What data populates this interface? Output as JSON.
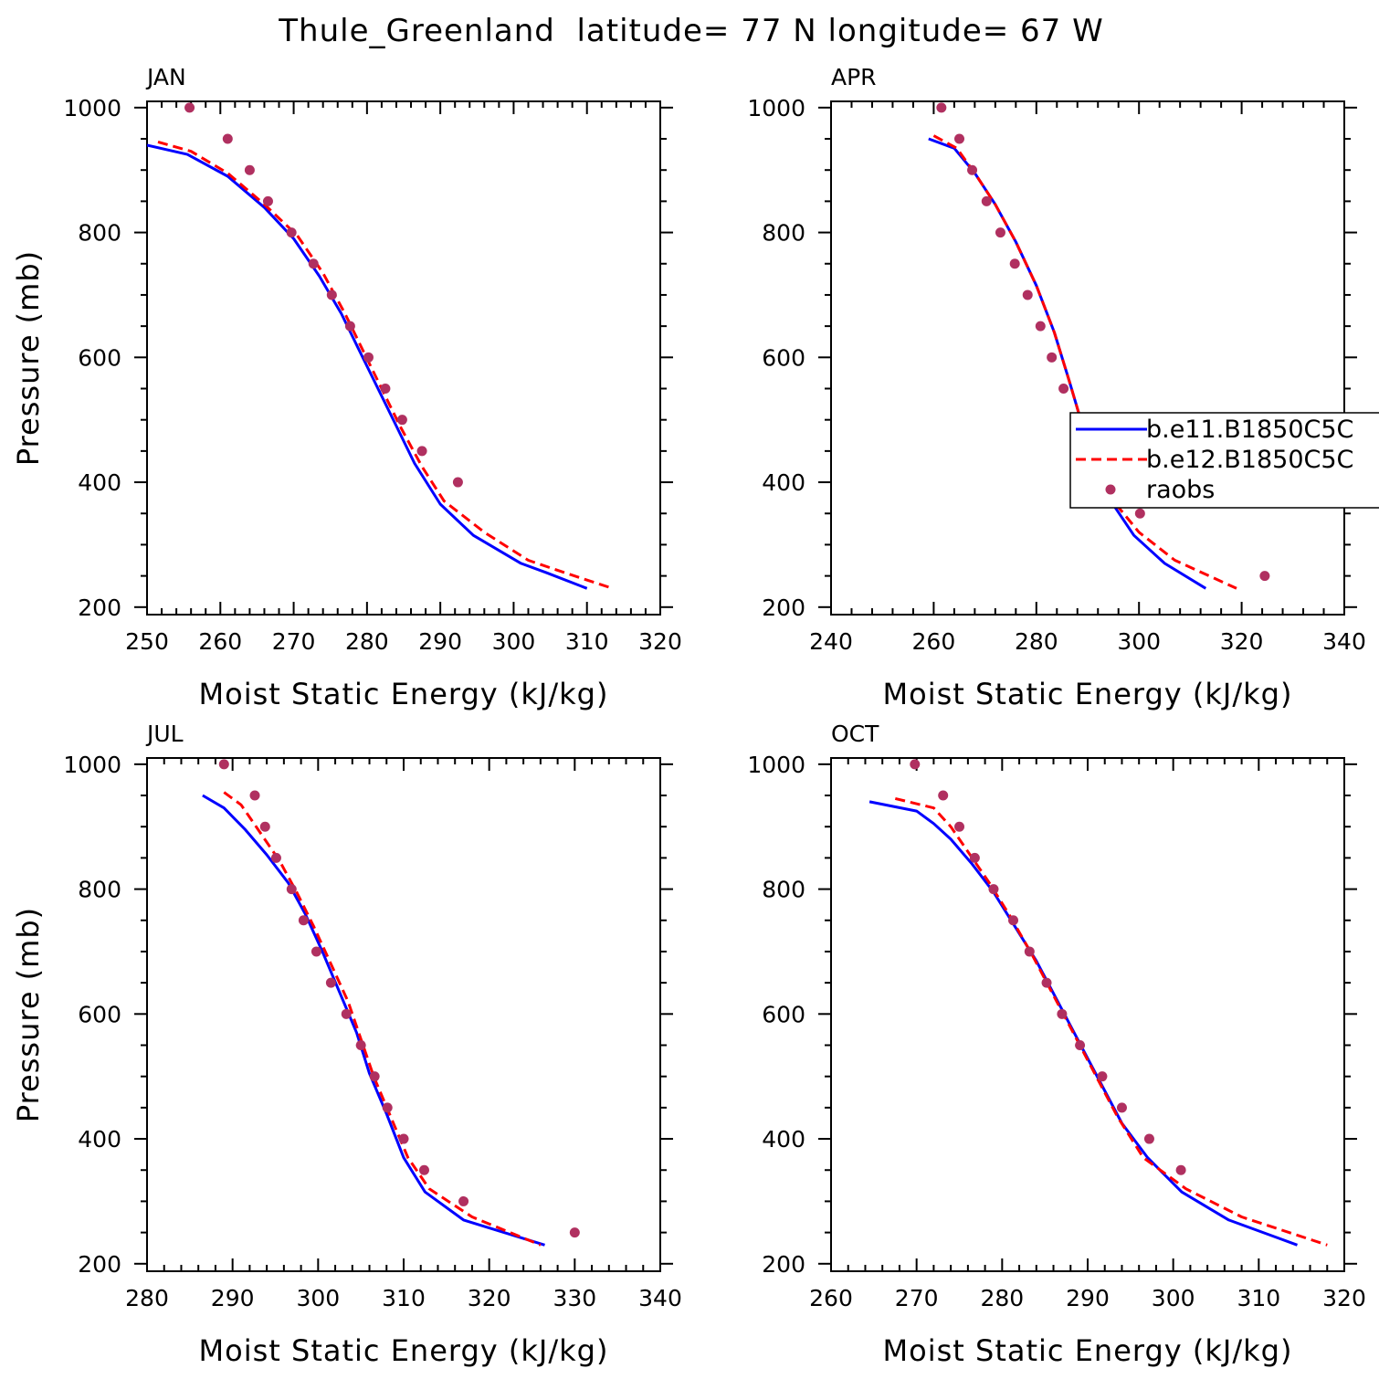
{
  "figure_title": "Thule_Greenland  latitude= 77 N longitude= 67 W",
  "legend": {
    "entries": [
      {
        "label": "b.e11.B1850C5C",
        "color": "#0000ff",
        "style": "solid"
      },
      {
        "label": "b.e12.B1850C5C",
        "color": "#ff0000",
        "style": "dashed"
      },
      {
        "label": "raobs",
        "color": "#b03060",
        "style": "dot"
      }
    ]
  },
  "chart_data": [
    {
      "type": "line",
      "title": "JAN",
      "xlabel": "Moist Static Energy (kJ/kg)",
      "ylabel": "Pressure (mb)",
      "xlim": [
        250,
        320
      ],
      "ylim": [
        1000,
        200
      ],
      "xticks": [
        250,
        260,
        270,
        280,
        290,
        300,
        310,
        320
      ],
      "yticks": [
        200,
        400,
        600,
        800,
        1000
      ],
      "series": [
        {
          "name": "b.e11.B1850C5C",
          "color": "#0000ff",
          "style": "solid",
          "x": [
            250.0,
            255.5,
            261.0,
            266.0,
            270.0,
            273.5,
            276.5,
            279.0,
            281.5,
            284.0,
            286.5,
            290.0,
            294.5,
            301.0,
            304.5,
            310.0
          ],
          "y": [
            940,
            925,
            890,
            840,
            790,
            730,
            670,
            610,
            550,
            490,
            430,
            365,
            315,
            270,
            255,
            230
          ]
        },
        {
          "name": "b.e12.B1850C5C",
          "color": "#ff0000",
          "style": "dashed",
          "x": [
            251.5,
            256.0,
            261.0,
            266.0,
            270.5,
            274.0,
            277.0,
            279.5,
            282.0,
            284.5,
            287.5,
            290.5,
            296.0,
            302.0,
            307.0,
            313.5
          ],
          "y": [
            945,
            930,
            895,
            845,
            795,
            735,
            670,
            610,
            550,
            490,
            425,
            370,
            320,
            275,
            255,
            230
          ]
        },
        {
          "name": "raobs",
          "color": "#b03060",
          "style": "dot",
          "x": [
            255.8,
            261.0,
            264.0,
            266.5,
            269.7,
            272.7,
            275.2,
            277.7,
            280.2,
            282.5,
            284.8,
            287.5,
            292.4
          ],
          "y": [
            1000,
            950,
            900,
            850,
            800,
            750,
            700,
            650,
            600,
            550,
            500,
            450,
            400
          ]
        }
      ]
    },
    {
      "type": "line",
      "title": "APR",
      "xlabel": "Moist Static Energy (kJ/kg)",
      "ylabel": "",
      "xlim": [
        240,
        340
      ],
      "ylim": [
        1000,
        200
      ],
      "xticks": [
        240,
        260,
        280,
        300,
        320,
        340
      ],
      "yticks": [
        200,
        400,
        600,
        800,
        1000
      ],
      "series": [
        {
          "name": "b.e11.B1850C5C",
          "color": "#0000ff",
          "style": "solid",
          "x": [
            259.0,
            264.0,
            268.0,
            272.0,
            276.0,
            280.0,
            283.5,
            286.5,
            289.0,
            291.5,
            294.5,
            299.0,
            305.0,
            313.0
          ],
          "y": [
            950,
            935,
            895,
            845,
            785,
            715,
            640,
            560,
            490,
            425,
            370,
            315,
            270,
            230
          ]
        },
        {
          "name": "b.e12.B1850C5C",
          "color": "#ff0000",
          "style": "dashed",
          "x": [
            260.0,
            264.5,
            268.0,
            272.0,
            276.0,
            280.0,
            283.5,
            286.5,
            289.0,
            291.5,
            295.0,
            300.0,
            307.0,
            319.0
          ],
          "y": [
            955,
            935,
            895,
            845,
            785,
            715,
            640,
            560,
            490,
            425,
            370,
            320,
            275,
            230
          ]
        },
        {
          "name": "raobs",
          "color": "#b03060",
          "style": "dot",
          "x": [
            261.5,
            265.0,
            267.5,
            270.3,
            273.0,
            275.8,
            278.3,
            280.8,
            283.0,
            285.3,
            287.6,
            290.6,
            294.3,
            300.2,
            324.5
          ],
          "y": [
            1000,
            950,
            900,
            850,
            800,
            750,
            700,
            650,
            600,
            550,
            500,
            450,
            400,
            350,
            250
          ]
        }
      ]
    },
    {
      "type": "line",
      "title": "JUL",
      "xlabel": "Moist Static Energy (kJ/kg)",
      "ylabel": "Pressure (mb)",
      "xlim": [
        280,
        340
      ],
      "ylim": [
        1000,
        200
      ],
      "xticks": [
        280,
        290,
        300,
        310,
        320,
        330,
        340
      ],
      "yticks": [
        200,
        400,
        600,
        800,
        1000
      ],
      "series": [
        {
          "name": "b.e11.B1850C5C",
          "color": "#0000ff",
          "style": "solid",
          "x": [
            286.5,
            289.0,
            291.5,
            294.0,
            296.5,
            298.5,
            300.5,
            302.5,
            304.5,
            306.0,
            308.0,
            310.0,
            312.5,
            317.0,
            326.5
          ],
          "y": [
            950,
            930,
            895,
            855,
            810,
            760,
            700,
            635,
            570,
            505,
            440,
            370,
            315,
            270,
            230
          ]
        },
        {
          "name": "b.e12.B1850C5C",
          "color": "#ff0000",
          "style": "dashed",
          "x": [
            289.0,
            291.0,
            293.0,
            295.5,
            297.5,
            299.5,
            301.5,
            303.5,
            305.0,
            306.5,
            308.5,
            310.5,
            313.0,
            318.0,
            326.0
          ],
          "y": [
            955,
            935,
            895,
            845,
            795,
            740,
            680,
            620,
            560,
            500,
            435,
            370,
            320,
            275,
            230
          ]
        },
        {
          "name": "raobs",
          "color": "#b03060",
          "style": "dot",
          "x": [
            289.0,
            292.6,
            293.8,
            295.1,
            296.9,
            298.3,
            299.8,
            301.5,
            303.3,
            305.0,
            306.6,
            308.1,
            310.0,
            312.4,
            317.0,
            330.0
          ],
          "y": [
            1000,
            950,
            900,
            850,
            800,
            750,
            700,
            650,
            600,
            550,
            500,
            450,
            400,
            350,
            300,
            250
          ]
        }
      ]
    },
    {
      "type": "line",
      "title": "OCT",
      "xlabel": "Moist Static Energy (kJ/kg)",
      "ylabel": "",
      "xlim": [
        260,
        320
      ],
      "ylim": [
        1000,
        200
      ],
      "xticks": [
        260,
        270,
        280,
        290,
        300,
        310,
        320
      ],
      "yticks": [
        200,
        400,
        600,
        800,
        1000
      ],
      "series": [
        {
          "name": "b.e11.B1850C5C",
          "color": "#0000ff",
          "style": "solid",
          "x": [
            264.5,
            270.0,
            272.0,
            274.0,
            276.5,
            279.0,
            281.5,
            284.0,
            286.5,
            289.0,
            291.5,
            294.0,
            297.0,
            301.0,
            306.5,
            314.5
          ],
          "y": [
            940,
            925,
            905,
            880,
            840,
            795,
            740,
            685,
            620,
            555,
            490,
            425,
            370,
            315,
            270,
            230
          ]
        },
        {
          "name": "b.e12.B1850C5C",
          "color": "#ff0000",
          "style": "dashed",
          "x": [
            267.5,
            272.0,
            274.0,
            276.0,
            278.5,
            281.0,
            283.5,
            286.0,
            288.5,
            291.0,
            293.5,
            296.5,
            301.5,
            308.0,
            318.0
          ],
          "y": [
            945,
            930,
            900,
            860,
            810,
            755,
            695,
            630,
            565,
            500,
            435,
            370,
            320,
            275,
            230
          ]
        },
        {
          "name": "raobs",
          "color": "#b03060",
          "style": "dot",
          "x": [
            269.8,
            273.1,
            275.0,
            276.8,
            279.0,
            281.3,
            283.2,
            285.2,
            287.0,
            289.1,
            291.7,
            294.0,
            297.2,
            300.9
          ],
          "y": [
            1000,
            950,
            900,
            850,
            800,
            750,
            700,
            650,
            600,
            550,
            500,
            450,
            400,
            350
          ]
        }
      ]
    }
  ]
}
